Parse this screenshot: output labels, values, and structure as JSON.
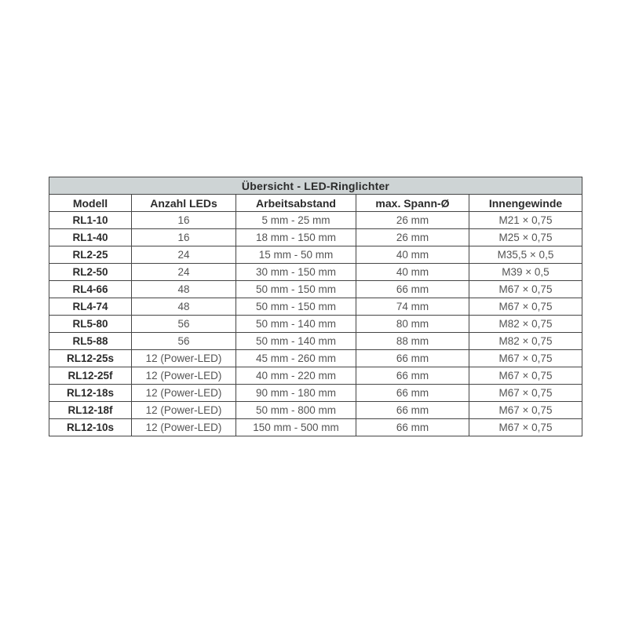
{
  "table": {
    "title": "Übersicht - LED-Ringlichter",
    "columns": [
      "Modell",
      "Anzahl LEDs",
      "Arbeitsabstand",
      "max. Spann-Ø",
      "Innengewinde"
    ],
    "rows": [
      [
        "RL1-10",
        "16",
        "5 mm - 25 mm",
        "26 mm",
        "M21 × 0,75"
      ],
      [
        "RL1-40",
        "16",
        "18 mm - 150 mm",
        "26 mm",
        "M25 × 0,75"
      ],
      [
        "RL2-25",
        "24",
        "15 mm - 50 mm",
        "40 mm",
        "M35,5 × 0,5"
      ],
      [
        "RL2-50",
        "24",
        "30 mm - 150 mm",
        "40 mm",
        "M39 × 0,5"
      ],
      [
        "RL4-66",
        "48",
        "50 mm - 150 mm",
        "66 mm",
        "M67 × 0,75"
      ],
      [
        "RL4-74",
        "48",
        "50 mm - 150 mm",
        "74 mm",
        "M67 × 0,75"
      ],
      [
        "RL5-80",
        "56",
        "50 mm - 140 mm",
        "80 mm",
        "M82 × 0,75"
      ],
      [
        "RL5-88",
        "56",
        "50 mm - 140 mm",
        "88 mm",
        "M82 × 0,75"
      ],
      [
        "RL12-25s",
        "12 (Power-LED)",
        "45 mm - 260 mm",
        "66 mm",
        "M67 × 0,75"
      ],
      [
        "RL12-25f",
        "12 (Power-LED)",
        "40 mm - 220 mm",
        "66 mm",
        "M67 × 0,75"
      ],
      [
        "RL12-18s",
        "12 (Power-LED)",
        "90 mm - 180 mm",
        "66 mm",
        "M67 × 0,75"
      ],
      [
        "RL12-18f",
        "12 (Power-LED)",
        "50 mm - 800 mm",
        "66 mm",
        "M67 × 0,75"
      ],
      [
        "RL12-10s",
        "12 (Power-LED)",
        "150 mm - 500 mm",
        "66 mm",
        "M67 × 0,75"
      ]
    ],
    "colors": {
      "title_bg": "#ced4d5",
      "border": "#454545",
      "header_text": "#2b2b2b",
      "cell_text": "#545454"
    }
  },
  "chart_data": {
    "type": "table",
    "title": "Übersicht - LED-Ringlichter",
    "categories": [
      "Modell",
      "Anzahl LEDs",
      "Arbeitsabstand",
      "max. Spann-Ø",
      "Innengewinde"
    ]
  }
}
